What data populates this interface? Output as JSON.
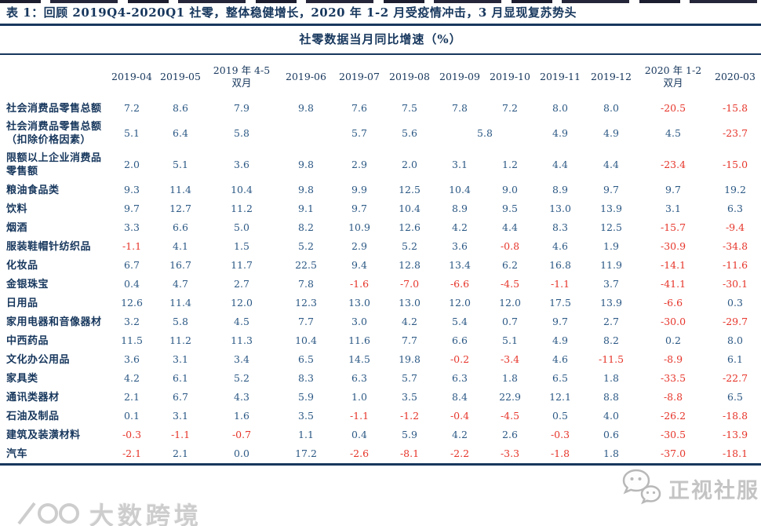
{
  "title": "表 1：回顾 2019Q4-2020Q1 社零，整体稳健增长，2020 年 1-2 月受疫情冲击，3 月显现复苏势头",
  "subtitle": "社零数据当月同比增速（%）",
  "colors": {
    "heading_navy": "#17375d",
    "value_blue": "#2b5884",
    "value_red": "#e6352a",
    "watermark_grey": "#c7c7c7"
  },
  "watermarks": {
    "left_logo_text": "大数跨境",
    "right_text": "正视社服",
    "right_icon": "wechat-icon"
  },
  "chart_data": {
    "type": "table",
    "columns": [
      "2019-04",
      "2019-05",
      "2019 年 4-5\n双月",
      "2019-06",
      "2019-07",
      "2019-08",
      "2019-09",
      "2019-10",
      "2019-11",
      "2019-12",
      "2020 年 1-2\n双月",
      "2020-03"
    ],
    "negative_values_shown_in_red": true,
    "rows": [
      {
        "label": "社会消费品零售总额",
        "values": [
          "7.2",
          "8.6",
          "7.9",
          "9.8",
          "7.6",
          "7.5",
          "7.8",
          "7.2",
          "8.0",
          "8.0",
          "-20.5",
          "-15.8"
        ]
      },
      {
        "label": "社会消费品零售总额（扣除价格因素）",
        "values": [
          "5.1",
          "6.4",
          "5.8",
          "",
          "5.7",
          "5.6",
          {
            "v": "5.8",
            "span": 2
          },
          "4.9",
          "4.9",
          "4.5",
          "-23.7"
        ]
      },
      {
        "label": "限额以上企业消费品零售额",
        "values": [
          "2.0",
          "5.1",
          "3.6",
          "9.8",
          "2.9",
          "2.0",
          "3.1",
          "1.2",
          "4.4",
          "4.4",
          "-23.4",
          "-15.0"
        ]
      },
      {
        "label": "粮油食品类",
        "values": [
          "9.3",
          "11.4",
          "10.4",
          "9.8",
          "9.9",
          "12.5",
          "10.4",
          "9.0",
          "8.9",
          "9.7",
          "9.7",
          "19.2"
        ]
      },
      {
        "label": "饮料",
        "values": [
          "9.7",
          "12.7",
          "11.2",
          "9.1",
          "9.7",
          "10.4",
          "8.9",
          "9.5",
          "13.0",
          "13.9",
          "3.1",
          "6.3"
        ]
      },
      {
        "label": "烟酒",
        "values": [
          "3.3",
          "6.6",
          "5.0",
          "8.2",
          "10.9",
          "12.6",
          "4.2",
          "4.4",
          "8.3",
          "12.5",
          "-15.7",
          "-9.4"
        ]
      },
      {
        "label": "服装鞋帽针纺织品",
        "values": [
          "-1.1",
          "4.1",
          "1.5",
          "5.2",
          "2.9",
          "5.2",
          "3.6",
          "-0.8",
          "4.6",
          "1.9",
          "-30.9",
          "-34.8"
        ]
      },
      {
        "label": "化妆品",
        "values": [
          "6.7",
          "16.7",
          "11.7",
          "22.5",
          "9.4",
          "12.8",
          "13.4",
          "6.2",
          "16.8",
          "11.9",
          "-14.1",
          "-11.6"
        ]
      },
      {
        "label": "金银珠宝",
        "values": [
          "0.4",
          "4.7",
          "2.7",
          "7.8",
          "-1.6",
          "-7.0",
          "-6.6",
          "-4.5",
          "-1.1",
          "3.7",
          "-41.1",
          "-30.1"
        ]
      },
      {
        "label": "日用品",
        "values": [
          "12.6",
          "11.4",
          "12.0",
          "12.3",
          "13.0",
          "13.0",
          "12.0",
          "12.0",
          "17.5",
          "13.9",
          "-6.6",
          "0.3"
        ]
      },
      {
        "label": "家用电器和音像器材",
        "values": [
          "3.2",
          "5.8",
          "4.5",
          "7.7",
          "3.0",
          "4.2",
          "5.4",
          "0.7",
          "9.7",
          "2.7",
          "-30.0",
          "-29.7"
        ]
      },
      {
        "label": "中西药品",
        "values": [
          "11.5",
          "11.2",
          "11.3",
          "10.4",
          "11.6",
          "7.7",
          "6.6",
          "5.1",
          "4.9",
          "8.2",
          "0.2",
          "8.0"
        ]
      },
      {
        "label": "文化办公用品",
        "values": [
          "3.6",
          "3.1",
          "3.4",
          "6.5",
          "14.5",
          "19.8",
          "-0.2",
          "-3.4",
          "4.6",
          "-11.5",
          "-8.9",
          "6.1"
        ]
      },
      {
        "label": "家具类",
        "values": [
          "4.2",
          "6.1",
          "5.2",
          "8.3",
          "6.3",
          "5.7",
          "6.3",
          "1.8",
          "6.5",
          "1.8",
          "-33.5",
          "-22.7"
        ]
      },
      {
        "label": "通讯类器材",
        "values": [
          "2.1",
          "6.7",
          "4.3",
          "5.9",
          "1.0",
          "3.5",
          "8.4",
          "22.9",
          "12.1",
          "8.8",
          "-8.8",
          "6.5"
        ]
      },
      {
        "label": "石油及制品",
        "values": [
          "0.1",
          "3.1",
          "1.6",
          "3.5",
          "-1.1",
          "-1.2",
          "-0.4",
          "-4.5",
          "0.5",
          "4.0",
          "-26.2",
          "-18.8"
        ]
      },
      {
        "label": "建筑及装潢材料",
        "values": [
          "-0.3",
          "-1.1",
          "-0.7",
          "1.1",
          "0.4",
          "5.9",
          "4.2",
          "2.6",
          "-0.3",
          "0.6",
          "-30.5",
          "-13.9"
        ]
      },
      {
        "label": "汽车",
        "values": [
          "-2.1",
          "2.1",
          "0.0",
          "17.2",
          "-2.6",
          "-8.1",
          "-2.2",
          "-3.3",
          "-1.8",
          "1.8",
          "-37.0",
          "-18.1"
        ]
      }
    ]
  }
}
